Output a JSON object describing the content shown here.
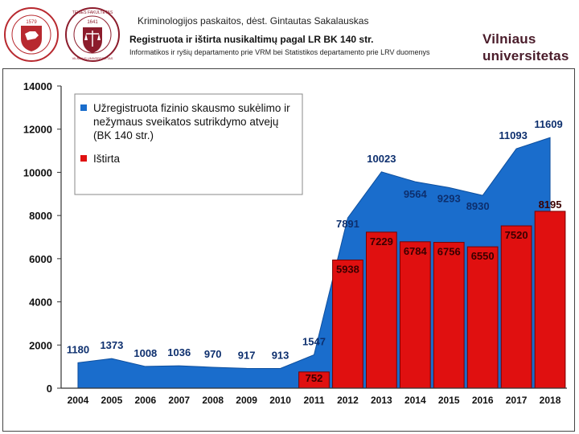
{
  "header": {
    "course": "Kriminologijos paskaitos, dėst. Gintautas Sakalauskas",
    "title": "Registruota ir ištirta nusikaltimų pagal LR BK 140 str.",
    "source": "Informatikos ir ryšių departamento prie VRM bei Statistikos departamento prie LRV duomenys",
    "brand_line1": "Vilniaus",
    "brand_line2": "universitetas",
    "logo1_year": "1579",
    "logo2_top": "TEISĖS FAKULTETAS",
    "logo2_year": "1641",
    "logo2_bottom": "VILNIAUS UNIVERSITETAS"
  },
  "colors": {
    "registered": "#1a6dcc",
    "investigated": "#e01010",
    "brand": "#4a1c2a",
    "logo1": "#b8292f",
    "logo2": "#8c1c2c"
  },
  "chart_data": {
    "type": "area",
    "title": "",
    "xlabel": "",
    "ylabel": "",
    "ylim": [
      0,
      14000
    ],
    "yticks": [
      0,
      2000,
      4000,
      6000,
      8000,
      10000,
      12000,
      14000
    ],
    "x": [
      "2004",
      "2005",
      "2006",
      "2007",
      "2008",
      "2009",
      "2010",
      "2011",
      "2012",
      "2013",
      "2014",
      "2015",
      "2016",
      "2017",
      "2018"
    ],
    "legend": {
      "position": "top-left",
      "entries": [
        "Užregistruota fizinio skausmo sukėlimo ir nežymaus sveikatos sutrikdymo atvejų (BK 140 str.)",
        "Ištirta"
      ]
    },
    "series": [
      {
        "name": "Užregistruota fizinio skausmo sukėlimo ir nežymaus sveikatos sutrikdymo atvejų (BK 140 str.)",
        "type": "area",
        "values": [
          1180,
          1373,
          1008,
          1036,
          970,
          917,
          913,
          1547,
          7891,
          10023,
          9564,
          9293,
          8930,
          11093,
          11609
        ]
      },
      {
        "name": "Ištirta",
        "type": "bar",
        "values": [
          null,
          null,
          null,
          null,
          null,
          null,
          null,
          752,
          5938,
          7229,
          6784,
          6756,
          6550,
          7520,
          8195
        ]
      }
    ]
  }
}
